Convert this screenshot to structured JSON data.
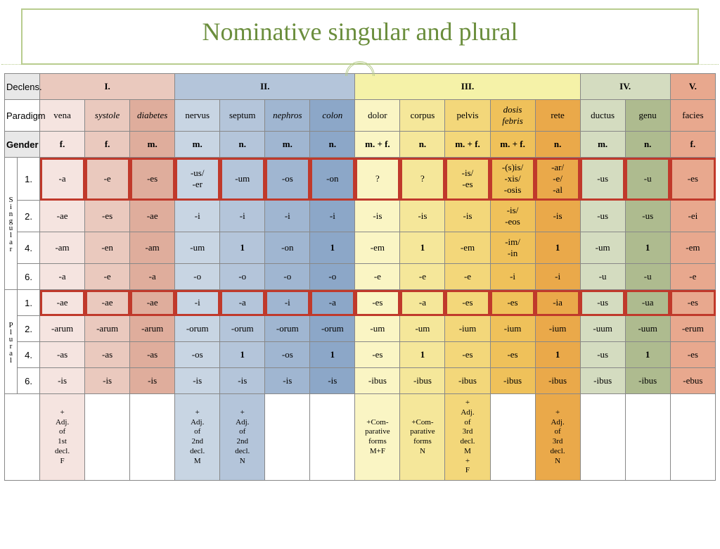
{
  "title": "Nominative singular and plural",
  "colors": {
    "grey": "#e8e8e8",
    "pink_l": "#f5e4e0",
    "pink_m": "#eac9be",
    "pink_d": "#dfad9c",
    "blue_l": "#c8d5e3",
    "blue_m": "#b4c5da",
    "blue_d": "#a0b6d1",
    "blue_xd": "#8ca7c8",
    "yel_h": "#f5f2a8",
    "yel_l": "#faf5c4",
    "yel_m": "#f5e79a",
    "orn_l": "#f3d77a",
    "orn_m": "#efc15a",
    "orn_d": "#eaa94a",
    "grn_l": "#d4dcc0",
    "grn_d": "#aebb8f",
    "red": "#e8a88e"
  },
  "declens_label": "Declens.",
  "declens": [
    "I.",
    "II.",
    "III.",
    "IV.",
    "V."
  ],
  "paradigm_label": "Paradigm",
  "paradigms": [
    "vena",
    "systole",
    "diabetes",
    "nervus",
    "septum",
    "nephros",
    "colon",
    "dolor",
    "corpus",
    "pelvis",
    "dosis febris",
    "rete",
    "ductus",
    "genu",
    "facies"
  ],
  "paradigm_italic": [
    false,
    true,
    true,
    false,
    false,
    true,
    true,
    false,
    false,
    false,
    true,
    false,
    false,
    false,
    false
  ],
  "gender_label": "Gender",
  "genders": [
    "f.",
    "f.",
    "m.",
    "m.",
    "n.",
    "m.",
    "n.",
    "m. + f.",
    "n.",
    "m. + f.",
    "m. + f.",
    "n.",
    "m.",
    "n.",
    "f."
  ],
  "sing_label": "Singular",
  "plur_label": "Plural",
  "cases": [
    "1.",
    "2.",
    "4.",
    "6."
  ],
  "sing": {
    "1": [
      "-a",
      "-e",
      "-es",
      "-us/-er",
      "-um",
      "-os",
      "-on",
      "?",
      "?",
      "-is/-es",
      "-(s)is/ -xis/-osis",
      "-ar/-e/ -al",
      "-us",
      "-u",
      "-es"
    ],
    "2": [
      "-ae",
      "-es",
      "-ae",
      "-i",
      "-i",
      "-i",
      "-i",
      "-is",
      "-is",
      "-is",
      "-is/-eos",
      "-is",
      "-us",
      "-us",
      "-ei"
    ],
    "4": [
      "-am",
      "-en",
      "-am",
      "-um",
      "1",
      "-on",
      "1",
      "-em",
      "1",
      "-em",
      "-im/-in",
      "1",
      "-um",
      "1",
      "-em"
    ],
    "6": [
      "-a",
      "-e",
      "-a",
      "-o",
      "-o",
      "-o",
      "-o",
      "-e",
      "-e",
      "-e",
      "-i",
      "-i",
      "-u",
      "-u",
      "-e"
    ]
  },
  "plur": {
    "1": [
      "-ae",
      "-ae",
      "-ae",
      "-i",
      "-a",
      "-i",
      "-a",
      "-es",
      "-a",
      "-es",
      "-es",
      "-ia",
      "-us",
      "-ua",
      "-es"
    ],
    "2": [
      "-arum",
      "-arum",
      "-arum",
      "-orum",
      "-orum",
      "-orum",
      "-orum",
      "-um",
      "-um",
      "-ium",
      "-ium",
      "-ium",
      "-uum",
      "-uum",
      "-erum"
    ],
    "4": [
      "-as",
      "-as",
      "-as",
      "-os",
      "1",
      "-os",
      "1",
      "-es",
      "1",
      "-es",
      "-es",
      "1",
      "-us",
      "1",
      "-es"
    ],
    "6": [
      "-is",
      "-is",
      "-is",
      "-is",
      "-is",
      "-is",
      "-is",
      "-ibus",
      "-ibus",
      "-ibus",
      "-ibus",
      "-ibus",
      "-ibus",
      "-ibus",
      "-ebus"
    ]
  },
  "notes": [
    "+ Adj. of 1st decl. F",
    "",
    "",
    "+ Adj. of 2nd decl. M",
    "+ Adj. of 2nd decl. N",
    "",
    "",
    "+Com- parative forms M+F",
    "+Com- parative forms N",
    "+ Adj. of 3rd decl. M + F",
    "",
    "+ Adj. of 3rd decl. N",
    "",
    "",
    ""
  ],
  "col_bg": [
    "pink_l",
    "pink_m",
    "pink_d",
    "blue_l",
    "blue_m",
    "blue_d",
    "blue_xd",
    "yel_l",
    "yel_m",
    "orn_l",
    "orn_m",
    "orn_d",
    "grn_l",
    "grn_d",
    "red"
  ]
}
